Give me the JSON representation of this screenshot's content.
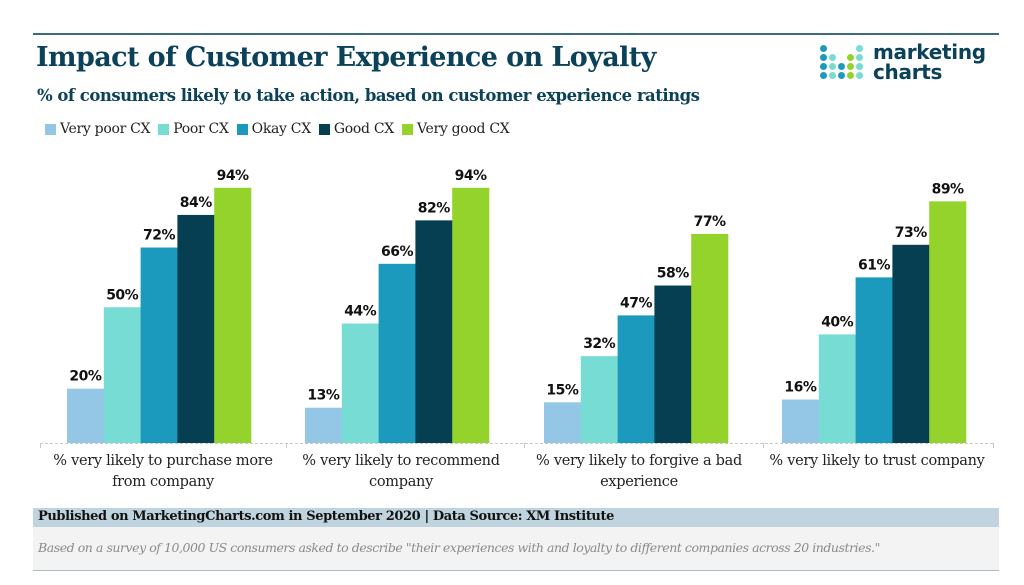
{
  "header": {
    "title": "Impact of Customer Experience on Loyalty",
    "subtitle": "% of consumers likely to take action, based on customer experience ratings"
  },
  "logo": {
    "line1": "marketing",
    "line2": "charts",
    "dot_colors": [
      [
        "#1c9abd",
        null,
        null,
        null,
        "#76dcd4"
      ],
      [
        "#1c9abd",
        "#76dcd4",
        null,
        "#94d22c",
        "#76dcd4"
      ],
      [
        "#1c9abd",
        "#76dcd4",
        "#1c9abd",
        "#94d22c",
        "#76dcd4"
      ],
      [
        "#1c9abd",
        "#76dcd4",
        "#1c9abd",
        "#94d22c",
        "#76dcd4"
      ]
    ]
  },
  "chart_data": {
    "type": "bar",
    "title": "Impact of Customer Experience on Loyalty",
    "subtitle": "% of consumers likely to take action, based on customer experience ratings",
    "xlabel": "",
    "ylabel": "",
    "ylim": [
      0,
      100
    ],
    "grid": false,
    "legend_position": "top-left",
    "value_suffix": "%",
    "categories": [
      "% very likely to purchase more from company",
      "% very likely to recommend company",
      "% very likely to forgive a bad experience",
      "% very likely to trust company"
    ],
    "category_lines": [
      [
        "% very likely to purchase more",
        "from company"
      ],
      [
        "% very likely to recommend",
        "company"
      ],
      [
        "% very likely to forgive a bad",
        "experience"
      ],
      [
        "% very likely to trust company"
      ]
    ],
    "series": [
      {
        "name": "Very poor CX",
        "color": "#94c7e6",
        "values": [
          20,
          13,
          15,
          16
        ]
      },
      {
        "name": "Poor CX",
        "color": "#76dcd4",
        "values": [
          50,
          44,
          32,
          40
        ]
      },
      {
        "name": "Okay CX",
        "color": "#1c9abd",
        "values": [
          72,
          66,
          47,
          61
        ]
      },
      {
        "name": "Good CX",
        "color": "#063f52",
        "values": [
          84,
          82,
          58,
          73
        ]
      },
      {
        "name": "Very good CX",
        "color": "#94d22c",
        "values": [
          94,
          94,
          77,
          89
        ]
      }
    ]
  },
  "footer": {
    "published": "Published on MarketingCharts.com in September 2020 | Data Source: XM Institute",
    "note": "Based on a survey of 10,000 US consumers asked to describe \"their experiences with and loyalty to different companies across 20 industries.\""
  }
}
